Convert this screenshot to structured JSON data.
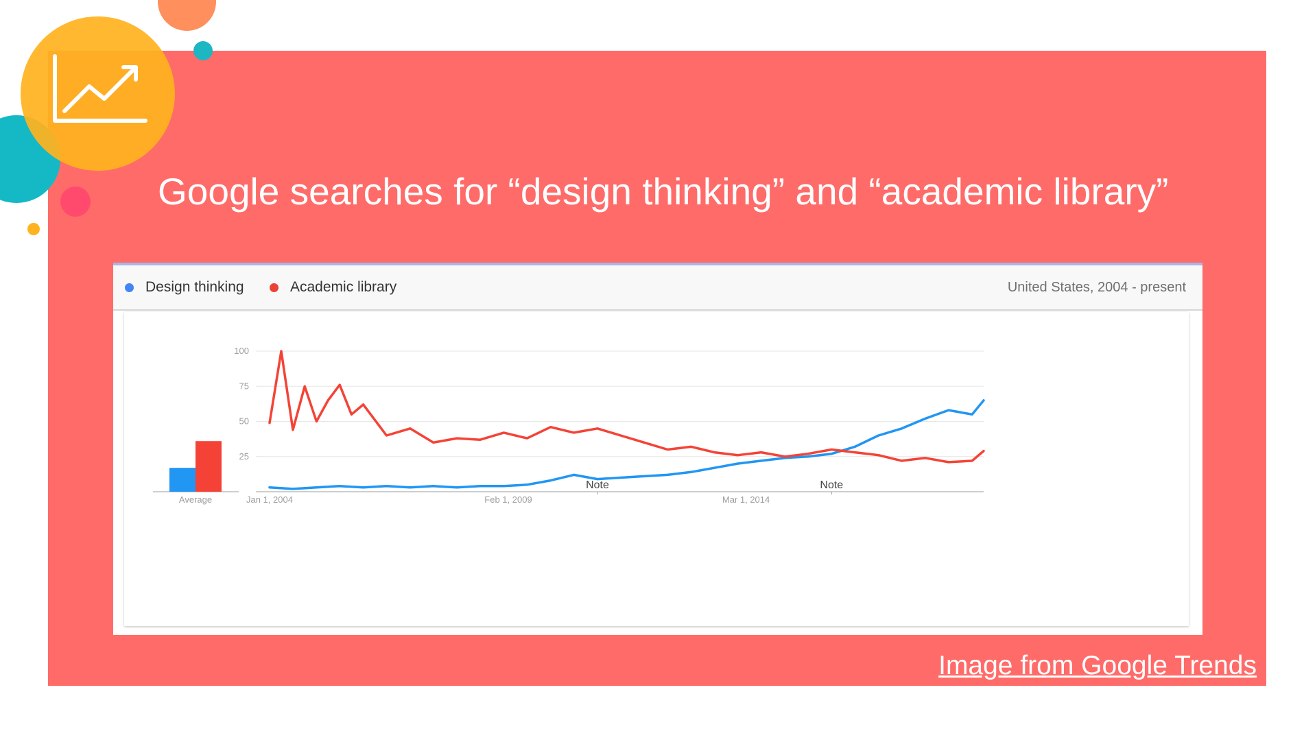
{
  "slide": {
    "title": "Google searches for “design thinking” and “academic library”",
    "caption_link": "Image from Google Trends",
    "panel_color": "#ff6b69"
  },
  "icons": [
    "trending-chart-icon"
  ],
  "chart_header": {
    "legend": [
      {
        "label": "Design thinking",
        "color": "#4285f4"
      },
      {
        "label": "Academic library",
        "color": "#ea4335"
      }
    ],
    "meta": "United States, 2004 - present"
  },
  "chart_data": [
    {
      "type": "bar",
      "categories": [
        "Average"
      ],
      "series": [
        {
          "name": "Design thinking",
          "values": [
            17
          ]
        },
        {
          "name": "Academic library",
          "values": [
            36
          ]
        }
      ],
      "ylim": [
        0,
        100
      ]
    },
    {
      "type": "line",
      "ylim": [
        0,
        100
      ],
      "y_ticks": [
        25,
        50,
        75,
        100
      ],
      "x_ticks": [
        {
          "date": "2004-01-01",
          "label": "Jan 1, 2004"
        },
        {
          "date": "2009-02-01",
          "label": "Feb 1, 2009"
        },
        {
          "date": "2014-03-01",
          "label": "Mar 1, 2014"
        }
      ],
      "x_range": [
        "2004-01-01",
        "2019-04-01"
      ],
      "annotations": [
        {
          "date": "2011-01-01",
          "label": "Note"
        },
        {
          "date": "2016-01-01",
          "label": "Note"
        }
      ],
      "grid": true,
      "series": [
        {
          "name": "Design thinking",
          "color": "#2196f3",
          "x": [
            "2004-01-01",
            "2004-07-01",
            "2005-01-01",
            "2005-07-01",
            "2006-01-01",
            "2006-07-01",
            "2007-01-01",
            "2007-07-01",
            "2008-01-01",
            "2008-07-01",
            "2009-01-01",
            "2009-07-01",
            "2010-01-01",
            "2010-07-01",
            "2011-01-01",
            "2011-07-01",
            "2012-01-01",
            "2012-07-01",
            "2013-01-01",
            "2013-07-01",
            "2014-01-01",
            "2014-07-01",
            "2015-01-01",
            "2015-07-01",
            "2016-01-01",
            "2016-07-01",
            "2017-01-01",
            "2017-07-01",
            "2018-01-01",
            "2018-07-01",
            "2019-01-01",
            "2019-04-01"
          ],
          "y": [
            3,
            2,
            3,
            4,
            3,
            4,
            3,
            4,
            3,
            4,
            4,
            5,
            8,
            12,
            9,
            10,
            11,
            12,
            14,
            17,
            20,
            22,
            24,
            25,
            27,
            32,
            40,
            45,
            52,
            58,
            55,
            65
          ]
        },
        {
          "name": "Academic library",
          "color": "#f44336",
          "x": [
            "2004-01-01",
            "2004-04-01",
            "2004-07-01",
            "2004-10-01",
            "2005-01-01",
            "2005-04-01",
            "2005-07-01",
            "2005-10-01",
            "2006-01-01",
            "2006-07-01",
            "2007-01-01",
            "2007-07-01",
            "2008-01-01",
            "2008-07-01",
            "2009-01-01",
            "2009-07-01",
            "2010-01-01",
            "2010-07-01",
            "2011-01-01",
            "2011-07-01",
            "2012-01-01",
            "2012-07-01",
            "2013-01-01",
            "2013-07-01",
            "2014-01-01",
            "2014-07-01",
            "2015-01-01",
            "2015-07-01",
            "2016-01-01",
            "2016-07-01",
            "2017-01-01",
            "2017-07-01",
            "2018-01-01",
            "2018-07-01",
            "2019-01-01",
            "2019-04-01"
          ],
          "y": [
            49,
            100,
            44,
            75,
            50,
            65,
            76,
            55,
            62,
            40,
            45,
            35,
            38,
            37,
            42,
            38,
            46,
            42,
            45,
            40,
            35,
            30,
            32,
            28,
            26,
            28,
            25,
            27,
            30,
            28,
            26,
            22,
            24,
            21,
            22,
            29
          ]
        }
      ]
    }
  ]
}
